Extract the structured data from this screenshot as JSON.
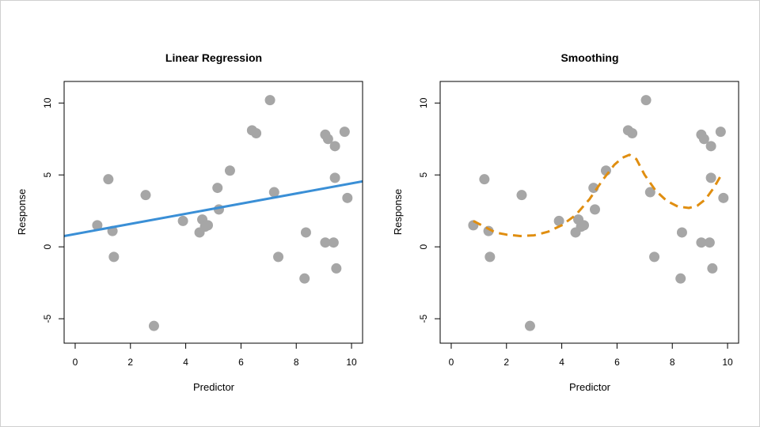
{
  "chart_data": [
    {
      "type": "scatter",
      "title": "Linear Regression",
      "xlabel": "Predictor",
      "ylabel": "Response",
      "xlim": [
        -0.4,
        10.4
      ],
      "ylim": [
        -6.7,
        11.5
      ],
      "xticks": [
        0,
        2,
        4,
        6,
        8,
        10
      ],
      "yticks": [
        -5,
        0,
        5,
        10
      ],
      "points": [
        [
          0.8,
          1.5
        ],
        [
          1.2,
          4.7
        ],
        [
          1.35,
          1.1
        ],
        [
          1.4,
          -0.7
        ],
        [
          2.55,
          3.6
        ],
        [
          2.85,
          -5.5
        ],
        [
          3.9,
          1.8
        ],
        [
          4.5,
          1.0
        ],
        [
          4.6,
          1.9
        ],
        [
          4.7,
          1.4
        ],
        [
          4.8,
          1.5
        ],
        [
          5.15,
          4.1
        ],
        [
          5.2,
          2.6
        ],
        [
          5.6,
          5.3
        ],
        [
          6.4,
          8.1
        ],
        [
          6.55,
          7.9
        ],
        [
          7.05,
          10.2
        ],
        [
          7.2,
          3.8
        ],
        [
          7.35,
          -0.7
        ],
        [
          8.3,
          -2.2
        ],
        [
          8.35,
          1.0
        ],
        [
          9.05,
          0.3
        ],
        [
          9.05,
          7.8
        ],
        [
          9.15,
          7.5
        ],
        [
          9.35,
          0.3
        ],
        [
          9.4,
          4.8
        ],
        [
          9.4,
          7.0
        ],
        [
          9.45,
          -1.5
        ],
        [
          9.75,
          8.0
        ],
        [
          9.85,
          3.4
        ]
      ],
      "series": [
        {
          "type": "line",
          "style": "solid",
          "color": "#3a8fd6",
          "x": [
            -0.4,
            10.4
          ],
          "y": [
            0.75,
            4.55
          ]
        }
      ],
      "point_color": "#a6a6a6",
      "grid": false
    },
    {
      "type": "scatter",
      "title": "Smoothing",
      "xlabel": "Predictor",
      "ylabel": "Response",
      "xlim": [
        -0.4,
        10.4
      ],
      "ylim": [
        -6.7,
        11.5
      ],
      "xticks": [
        0,
        2,
        4,
        6,
        8,
        10
      ],
      "yticks": [
        -5,
        0,
        5,
        10
      ],
      "points": [
        [
          0.8,
          1.5
        ],
        [
          1.2,
          4.7
        ],
        [
          1.35,
          1.1
        ],
        [
          1.4,
          -0.7
        ],
        [
          2.55,
          3.6
        ],
        [
          2.85,
          -5.5
        ],
        [
          3.9,
          1.8
        ],
        [
          4.5,
          1.0
        ],
        [
          4.6,
          1.9
        ],
        [
          4.7,
          1.4
        ],
        [
          4.8,
          1.5
        ],
        [
          5.15,
          4.1
        ],
        [
          5.2,
          2.6
        ],
        [
          5.6,
          5.3
        ],
        [
          6.4,
          8.1
        ],
        [
          6.55,
          7.9
        ],
        [
          7.05,
          10.2
        ],
        [
          7.2,
          3.8
        ],
        [
          7.35,
          -0.7
        ],
        [
          8.3,
          -2.2
        ],
        [
          8.35,
          1.0
        ],
        [
          9.05,
          0.3
        ],
        [
          9.05,
          7.8
        ],
        [
          9.15,
          7.5
        ],
        [
          9.35,
          0.3
        ],
        [
          9.4,
          4.8
        ],
        [
          9.4,
          7.0
        ],
        [
          9.45,
          -1.5
        ],
        [
          9.75,
          8.0
        ],
        [
          9.85,
          3.4
        ]
      ],
      "series": [
        {
          "type": "line",
          "style": "dashed",
          "color": "#e08e10",
          "x": [
            0.8,
            1.2,
            1.6,
            2.0,
            2.5,
            3.0,
            3.5,
            4.0,
            4.5,
            5.0,
            5.5,
            5.9,
            6.2,
            6.45,
            6.7,
            7.0,
            7.4,
            7.8,
            8.2,
            8.6,
            8.9,
            9.2,
            9.5,
            9.8
          ],
          "y": [
            1.8,
            1.4,
            1.0,
            0.85,
            0.75,
            0.8,
            1.05,
            1.5,
            2.2,
            3.3,
            4.7,
            5.7,
            6.2,
            6.4,
            6.1,
            5.0,
            3.9,
            3.2,
            2.8,
            2.7,
            2.85,
            3.3,
            4.1,
            5.1
          ]
        }
      ],
      "point_color": "#a6a6a6",
      "grid": false
    }
  ]
}
